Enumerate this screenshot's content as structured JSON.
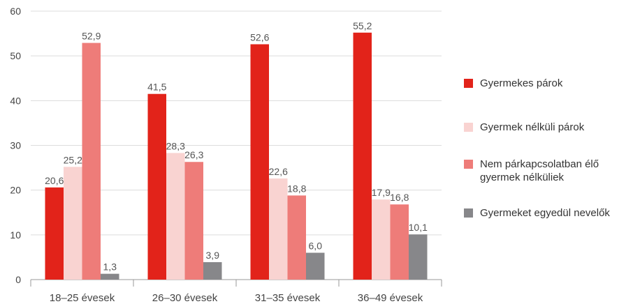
{
  "chart_data": {
    "type": "bar",
    "categories": [
      "18–25 évesek",
      "26–30 évesek",
      "31–35 évesek",
      "36–49 évesek"
    ],
    "series": [
      {
        "name": "Gyermekes párok",
        "color": "#e2231a",
        "values": [
          20.6,
          41.5,
          52.6,
          55.2
        ],
        "labels": [
          "20,6",
          "41,5",
          "52,6",
          "55,2"
        ]
      },
      {
        "name": "Gyermek nélküli párok",
        "color": "#f9d3d1",
        "values": [
          25.2,
          28.3,
          22.6,
          17.9
        ],
        "labels": [
          "25,2",
          "28,3",
          "22,6",
          "17,9"
        ]
      },
      {
        "name": "Nem párkapcsolatban élő\ngyermek nélküliek",
        "color": "#ee7c79",
        "values": [
          52.9,
          26.3,
          18.8,
          16.8
        ],
        "labels": [
          "52,9",
          "26,3",
          "18,8",
          "16,8"
        ]
      },
      {
        "name": "Gyermeket egyedül nevelők",
        "color": "#87878a",
        "values": [
          1.3,
          3.9,
          6.0,
          10.1
        ],
        "labels": [
          "1,3",
          "3,9",
          "6,0",
          "10,1"
        ]
      }
    ],
    "yticks": [
      "0",
      "10",
      "20",
      "30",
      "40",
      "50",
      "60"
    ],
    "ylim": [
      0,
      60
    ],
    "grid": true,
    "legend_position": "right"
  }
}
